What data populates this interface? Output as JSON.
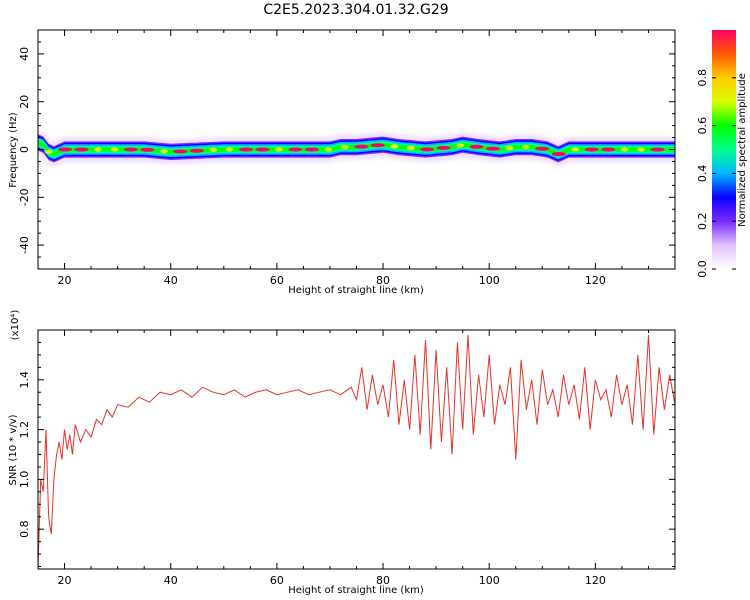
{
  "figure": {
    "title": "C2E5.2023.304.01.32.G29",
    "colors": {
      "snr_line": "#e8312a",
      "spectrum_background": "#ffffff",
      "axis": "#000000"
    }
  },
  "chart_data": [
    {
      "type": "heatmap",
      "xlabel": "Height of straight line (km)",
      "ylabel": "Frequency (Hz)",
      "xlim": [
        15,
        135
      ],
      "ylim": [
        -50,
        50
      ],
      "xticks": [
        20,
        40,
        60,
        80,
        100,
        120
      ],
      "yticks": [
        -40,
        -20,
        0,
        20,
        40
      ],
      "ytick_labels": [
        "-40",
        "-20",
        "0",
        "20",
        "40"
      ],
      "ridge": {
        "description": "narrow spectral ridge near 0 Hz",
        "x": [
          15,
          16,
          17,
          18,
          20,
          25,
          30,
          35,
          40,
          50,
          60,
          70,
          72,
          75,
          80,
          83,
          88,
          93,
          95,
          98,
          102,
          105,
          108,
          111,
          113,
          115,
          120,
          125,
          130,
          135
        ],
        "y": [
          3,
          2,
          -1,
          -2,
          0,
          0,
          0,
          0,
          -1,
          0,
          0,
          0,
          1,
          1,
          2,
          1,
          0,
          1,
          2,
          1,
          0,
          1,
          1,
          0,
          -2,
          0,
          0,
          0,
          0,
          0
        ]
      },
      "colorbar": {
        "label": "Normalized spectral amplitude",
        "range": [
          0,
          1
        ],
        "ticks": [
          0.0,
          0.2,
          0.4,
          0.6,
          0.8
        ],
        "tick_labels": [
          "0.0",
          "0.2",
          "0.4",
          "0.6",
          "0.8"
        ],
        "colormap": [
          "#ffffff",
          "#e0bfff",
          "#7a2bff",
          "#0a00ff",
          "#00b7ff",
          "#00ff8c",
          "#00ff00",
          "#d9ff00",
          "#ffcc00",
          "#ff5a00",
          "#ff0066"
        ]
      }
    },
    {
      "type": "line",
      "xlabel": "Height of straight line (km)",
      "ylabel": "SNR (10 * v/v)",
      "scale_label": "(x10⁴)",
      "xlim": [
        15,
        135
      ],
      "ylim": [
        0.64,
        1.6
      ],
      "xticks": [
        20,
        40,
        60,
        80,
        100,
        120
      ],
      "yticks": [
        0.8,
        1.0,
        1.2,
        1.4
      ],
      "ytick_labels": [
        "0.8",
        "1.0",
        "1.2",
        "1.4"
      ],
      "series": [
        {
          "color": "#e8312a",
          "x": [
            15,
            15.5,
            16,
            16.5,
            17,
            17.5,
            18,
            18.5,
            19,
            19.5,
            20,
            20.5,
            21,
            21.5,
            22,
            23,
            24,
            25,
            26,
            27,
            28,
            29,
            30,
            32,
            34,
            36,
            38,
            40,
            42,
            44,
            46,
            48,
            50,
            52,
            54,
            56,
            58,
            60,
            62,
            64,
            66,
            68,
            70,
            72,
            74,
            75,
            76,
            77,
            78,
            79,
            80,
            81,
            82,
            83,
            84,
            85,
            86,
            87,
            88,
            89,
            90,
            91,
            92,
            93,
            94,
            95,
            96,
            97,
            98,
            99,
            100,
            101,
            102,
            103,
            104,
            105,
            106,
            107,
            108,
            109,
            110,
            111,
            112,
            113,
            114,
            115,
            116,
            117,
            118,
            119,
            120,
            121,
            122,
            123,
            124,
            125,
            126,
            127,
            128,
            129,
            130,
            131,
            132,
            133,
            134,
            135
          ],
          "y": [
            0.64,
            1.0,
            0.95,
            1.2,
            0.85,
            0.78,
            1.0,
            1.1,
            1.15,
            1.08,
            1.2,
            1.12,
            1.18,
            1.1,
            1.22,
            1.15,
            1.2,
            1.17,
            1.24,
            1.22,
            1.28,
            1.25,
            1.3,
            1.29,
            1.33,
            1.31,
            1.35,
            1.34,
            1.36,
            1.33,
            1.37,
            1.35,
            1.34,
            1.36,
            1.33,
            1.35,
            1.36,
            1.34,
            1.35,
            1.36,
            1.34,
            1.35,
            1.36,
            1.34,
            1.37,
            1.32,
            1.45,
            1.28,
            1.42,
            1.3,
            1.38,
            1.25,
            1.48,
            1.22,
            1.4,
            1.2,
            1.5,
            1.18,
            1.56,
            1.12,
            1.52,
            1.15,
            1.45,
            1.1,
            1.55,
            1.2,
            1.58,
            1.18,
            1.42,
            1.25,
            1.5,
            1.22,
            1.38,
            1.3,
            1.45,
            1.08,
            1.48,
            1.28,
            1.4,
            1.22,
            1.44,
            1.3,
            1.36,
            1.25,
            1.42,
            1.3,
            1.38,
            1.24,
            1.45,
            1.2,
            1.4,
            1.32,
            1.36,
            1.25,
            1.42,
            1.3,
            1.38,
            1.22,
            1.5,
            1.2,
            1.58,
            1.18,
            1.45,
            1.28,
            1.42,
            1.3
          ]
        }
      ]
    }
  ]
}
